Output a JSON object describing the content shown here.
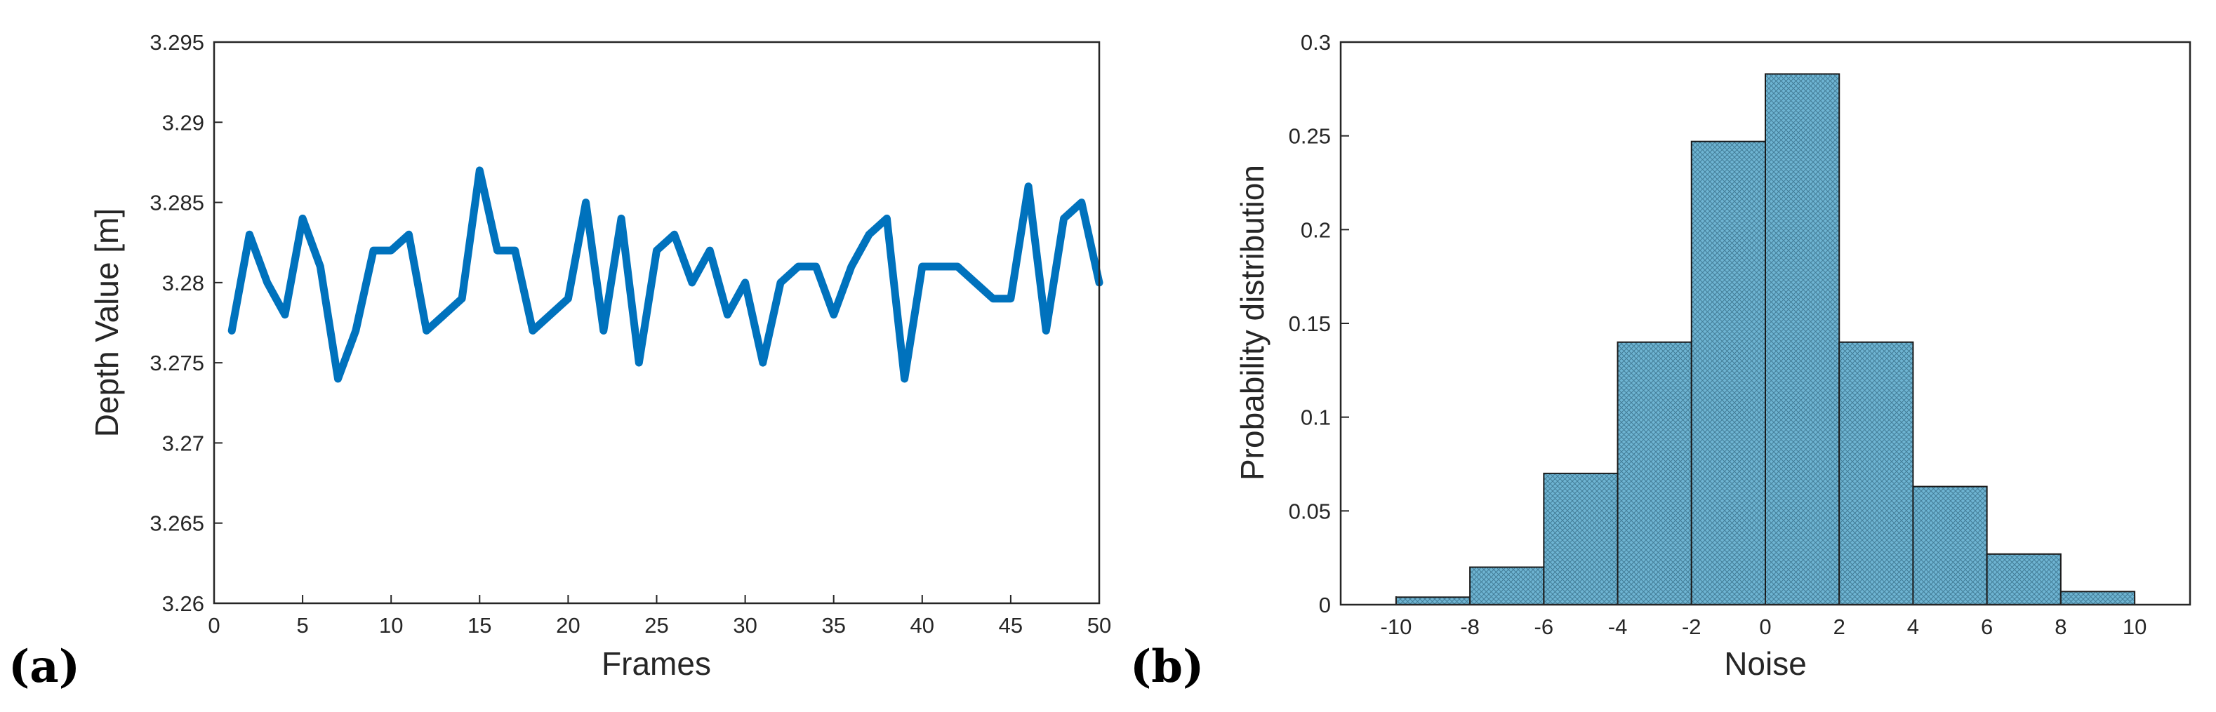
{
  "chart_data": [
    {
      "type": "line",
      "panel_label": "(a)",
      "title": "",
      "xlabel": "Frames",
      "ylabel": "Depth Value [m]",
      "xlim": [
        0,
        50
      ],
      "ylim": [
        3.26,
        3.295
      ],
      "xticks": [
        0,
        5,
        10,
        15,
        20,
        25,
        30,
        35,
        40,
        45,
        50
      ],
      "yticks": [
        3.26,
        3.265,
        3.27,
        3.275,
        3.28,
        3.285,
        3.29,
        3.295
      ],
      "xtick_labels": [
        "0",
        "5",
        "10",
        "15",
        "20",
        "25",
        "30",
        "35",
        "40",
        "45",
        "50"
      ],
      "ytick_labels": [
        "3.26",
        "3.265",
        "3.27",
        "3.275",
        "3.28",
        "3.285",
        "3.29",
        "3.295"
      ],
      "grid": false,
      "series": [
        {
          "name": "Depth",
          "color": "#0072BD",
          "x": [
            1,
            2,
            3,
            4,
            5,
            6,
            7,
            8,
            9,
            10,
            11,
            12,
            13,
            14,
            15,
            16,
            17,
            18,
            19,
            20,
            21,
            22,
            23,
            24,
            25,
            26,
            27,
            28,
            29,
            30,
            31,
            32,
            33,
            34,
            35,
            36,
            37,
            38,
            39,
            40,
            41,
            42,
            43,
            44,
            45,
            46,
            47,
            48,
            49,
            50
          ],
          "y": [
            3.277,
            3.283,
            3.28,
            3.278,
            3.284,
            3.281,
            3.274,
            3.277,
            3.282,
            3.282,
            3.283,
            3.277,
            3.278,
            3.279,
            3.287,
            3.282,
            3.282,
            3.277,
            3.278,
            3.279,
            3.285,
            3.277,
            3.284,
            3.275,
            3.282,
            3.283,
            3.28,
            3.282,
            3.278,
            3.28,
            3.275,
            3.28,
            3.281,
            3.281,
            3.278,
            3.281,
            3.283,
            3.284,
            3.274,
            3.281,
            3.281,
            3.281,
            3.28,
            3.279,
            3.279,
            3.286,
            3.277,
            3.284,
            3.285,
            3.28
          ]
        }
      ]
    },
    {
      "type": "bar",
      "panel_label": "(b)",
      "title": "",
      "xlabel": "Noise",
      "ylabel": "Probability distribution",
      "xlim": [
        -11.5,
        11.5
      ],
      "ylim": [
        0,
        0.3
      ],
      "xticks": [
        -10,
        -8,
        -6,
        -4,
        -2,
        0,
        2,
        4,
        6,
        8,
        10
      ],
      "yticks": [
        0,
        0.05,
        0.1,
        0.15,
        0.2,
        0.25,
        0.3
      ],
      "xtick_labels": [
        "-10",
        "-8",
        "-6",
        "-4",
        "-2",
        "0",
        "2",
        "4",
        "6",
        "8",
        "10"
      ],
      "ytick_labels": [
        "0",
        "0.05",
        "0.1",
        "0.15",
        "0.2",
        "0.25",
        "0.3"
      ],
      "grid": false,
      "bar_color": "#6EB4D2",
      "bins": [
        {
          "from": -10,
          "to": -8,
          "value": 0.004
        },
        {
          "from": -8,
          "to": -6,
          "value": 0.02
        },
        {
          "from": -6,
          "to": -4,
          "value": 0.07
        },
        {
          "from": -4,
          "to": -2,
          "value": 0.14
        },
        {
          "from": -2,
          "to": 0,
          "value": 0.247
        },
        {
          "from": 0,
          "to": 2,
          "value": 0.283
        },
        {
          "from": 2,
          "to": 4,
          "value": 0.14
        },
        {
          "from": 4,
          "to": 6,
          "value": 0.063
        },
        {
          "from": 6,
          "to": 8,
          "value": 0.027
        },
        {
          "from": 8,
          "to": 10,
          "value": 0.007
        }
      ]
    }
  ]
}
